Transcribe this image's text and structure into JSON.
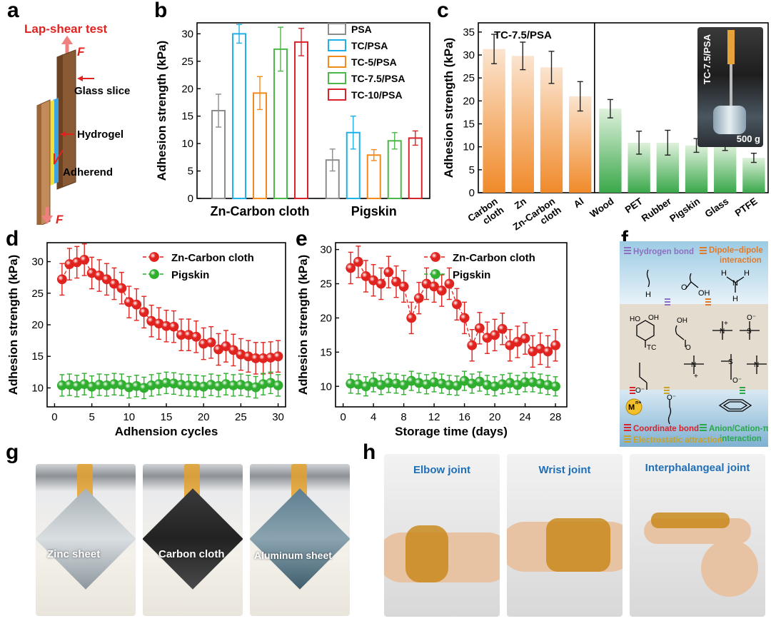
{
  "panel_labels": {
    "a": "a",
    "b": "b",
    "c": "c",
    "d": "d",
    "e": "e",
    "f": "f",
    "g": "g",
    "h": "h"
  },
  "panel_a": {
    "title": "Lap-shear test",
    "force_label": "F",
    "glass": "Glass slice",
    "hydrogel": "Hydrogel",
    "adherend": "Adherend"
  },
  "panel_f": {
    "hbond": "Hydrogen bond",
    "dipole1": "Dipole−dipole",
    "dipole2": "interaction",
    "coord": "Coordinate bond",
    "cation1": "Anion/Cation-π",
    "cation2": "interaction",
    "electro": "Electrostatic attraction",
    "metal": "M",
    "metal_sup": "n+",
    "tc": "TC"
  },
  "panel_g": {
    "captions": [
      "Zinc sheet",
      "Carbon cloth",
      "Aluminum sheet"
    ]
  },
  "panel_h": {
    "captions": [
      "Elbow joint",
      "Wrist joint",
      "Interphalangeal joint"
    ]
  },
  "panel_c_inset": {
    "label": "TC-7.5/PSA",
    "mass": "500 g"
  },
  "chart_data": [
    {
      "id": "b",
      "type": "bar",
      "ylabel": "Adhesion strength (kPa)",
      "ylim": [
        0,
        32
      ],
      "yticks": [
        0,
        5,
        10,
        15,
        20,
        25,
        30
      ],
      "categories": [
        "Zn-Carbon cloth",
        "Pigskin"
      ],
      "legend_position": "top-right",
      "series": [
        {
          "name": "PSA",
          "color": "#8c8c8c",
          "values": [
            16,
            7
          ],
          "errors": [
            3,
            2
          ]
        },
        {
          "name": "TC/PSA",
          "color": "#1fb0e8",
          "values": [
            30,
            12
          ],
          "errors": [
            1.7,
            3
          ]
        },
        {
          "name": "TC-5/PSA",
          "color": "#f28a1c",
          "values": [
            19.2,
            7.9
          ],
          "errors": [
            3,
            1
          ]
        },
        {
          "name": "TC-7.5/PSA",
          "color": "#4cb848",
          "values": [
            27.2,
            10.5
          ],
          "errors": [
            4,
            1.5
          ]
        },
        {
          "name": "TC-10/PSA",
          "color": "#d8232a",
          "values": [
            28.5,
            11
          ],
          "errors": [
            2.5,
            1.3
          ]
        }
      ]
    },
    {
      "id": "c",
      "type": "bar",
      "ylabel": "Adhesion  strength (kPa)",
      "ylim": [
        0,
        37
      ],
      "yticks": [
        0,
        5,
        10,
        15,
        20,
        25,
        30,
        35
      ],
      "annotation": "TC-7.5/PSA",
      "categories": [
        "Carbon cloth",
        "Zn",
        "Zn-Carbon cloth",
        "Al",
        "Wood",
        "PET",
        "Rubber",
        "Pigskin",
        "Glass",
        "PTFE"
      ],
      "values": [
        31.3,
        29.8,
        27.3,
        21,
        18.3,
        10.9,
        10.9,
        10.3,
        10.5,
        7.6
      ],
      "errors": [
        3.2,
        3,
        3.5,
        3.2,
        2,
        2.5,
        2.7,
        1.5,
        1.3,
        1
      ]
    },
    {
      "id": "d",
      "type": "line",
      "xlabel": "Adhension cycles",
      "ylabel": "Adhesion strength (kPa)",
      "xlim": [
        -1,
        31
      ],
      "ylim": [
        7,
        33
      ],
      "xticks": [
        0,
        5,
        10,
        15,
        20,
        25,
        30
      ],
      "yticks": [
        10,
        15,
        20,
        25,
        30
      ],
      "legend_position": "top-right",
      "series": [
        {
          "name": "Zn-Carbon cloth",
          "color": "#e0231f",
          "x": [
            1,
            2,
            3,
            4,
            5,
            6,
            7,
            8,
            9,
            10,
            11,
            12,
            13,
            14,
            15,
            16,
            17,
            18,
            19,
            20,
            21,
            22,
            23,
            24,
            25,
            26,
            27,
            28,
            29,
            30
          ],
          "values": [
            27.2,
            29.6,
            29.9,
            30.3,
            28.2,
            27.8,
            27.2,
            26.5,
            25.8,
            23.6,
            23.2,
            22,
            20.6,
            20.2,
            19.8,
            19.7,
            18.4,
            18.4,
            18.1,
            17,
            17.2,
            16.1,
            16.6,
            16,
            15.3,
            15,
            14.7,
            14.7,
            14.8,
            15
          ],
          "error": 2.5
        },
        {
          "name": "Pigskin",
          "color": "#2fae2f",
          "x": [
            1,
            2,
            3,
            4,
            5,
            6,
            7,
            8,
            9,
            10,
            11,
            12,
            13,
            14,
            15,
            16,
            17,
            18,
            19,
            20,
            21,
            22,
            23,
            24,
            25,
            26,
            27,
            28,
            29,
            30
          ],
          "values": [
            10.4,
            10.5,
            10.3,
            10.6,
            10.2,
            10.5,
            10.4,
            10.6,
            10.5,
            10.1,
            10.3,
            10,
            10.4,
            10.6,
            10.8,
            10.7,
            10.5,
            10.4,
            10.3,
            10.2,
            10.5,
            10.3,
            10.6,
            10.4,
            10.5,
            10.3,
            10.1,
            10.6,
            10.8,
            10.4
          ],
          "error": 1.7
        }
      ]
    },
    {
      "id": "e",
      "type": "line",
      "xlabel": "Storage time (days)",
      "ylabel": "Adhesion strength (kPa)",
      "xlim": [
        -1,
        29.5
      ],
      "ylim": [
        7,
        31
      ],
      "xticks": [
        0,
        4,
        8,
        12,
        16,
        20,
        24,
        28
      ],
      "yticks": [
        10,
        15,
        20,
        25,
        30
      ],
      "legend_position": "top-right",
      "series": [
        {
          "name": "Zn-Carbon cloth",
          "color": "#e0231f",
          "x": [
            1,
            2,
            3,
            4,
            5,
            6,
            7,
            8,
            9,
            10,
            11,
            12,
            13,
            14,
            15,
            16,
            17,
            18,
            19,
            20,
            21,
            22,
            23,
            24,
            25,
            26,
            27,
            28
          ],
          "values": [
            27.3,
            28.2,
            26.1,
            25.5,
            25,
            26.7,
            25.3,
            24.6,
            20,
            22.9,
            25,
            24.6,
            24,
            25,
            22,
            20,
            16,
            18.5,
            17.1,
            17.5,
            18.4,
            16,
            16.5,
            17,
            15.1,
            15.5,
            15.1,
            16
          ],
          "error": 2.3
        },
        {
          "name": "Pigskin",
          "color": "#2fae2f",
          "x": [
            1,
            2,
            3,
            4,
            5,
            6,
            7,
            8,
            9,
            10,
            11,
            12,
            13,
            14,
            15,
            16,
            17,
            18,
            19,
            20,
            21,
            22,
            23,
            24,
            25,
            26,
            27,
            28
          ],
          "values": [
            10.4,
            10.3,
            10,
            10.6,
            10.2,
            10.5,
            10.4,
            10.2,
            10.8,
            10.5,
            10.3,
            10.6,
            10.4,
            10.2,
            10.1,
            10.8,
            10.4,
            10.7,
            10.2,
            10,
            10.3,
            10.5,
            10.2,
            10.6,
            10.6,
            10.4,
            10.2,
            10
          ],
          "error": 1.4
        }
      ]
    }
  ]
}
